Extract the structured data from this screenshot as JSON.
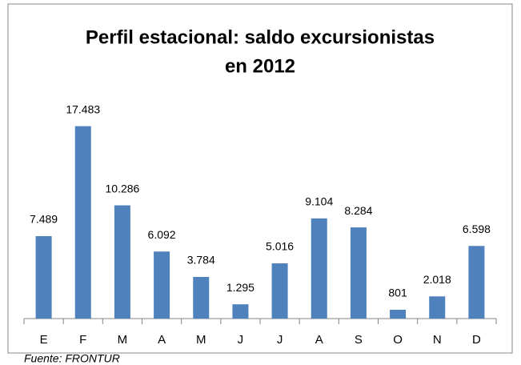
{
  "chart_data": {
    "type": "bar",
    "title": [
      "Perfil estacional: saldo excursionistas",
      "en 2012"
    ],
    "categories": [
      "E",
      "F",
      "M",
      "A",
      "M",
      "J",
      "J",
      "A",
      "S",
      "O",
      "N",
      "D"
    ],
    "values": [
      7489,
      17483,
      10286,
      6092,
      3784,
      1295,
      5016,
      9104,
      8284,
      801,
      2018,
      6598
    ],
    "value_labels": [
      "7.489",
      "17.483",
      "10.286",
      "6.092",
      "3.784",
      "1.295",
      "5.016",
      "9.104",
      "8.284",
      "801",
      "2.018",
      "6.598"
    ],
    "color": "#4f81bd",
    "ylim": [
      0,
      20000
    ],
    "source": "Fuente: FRONTUR"
  }
}
